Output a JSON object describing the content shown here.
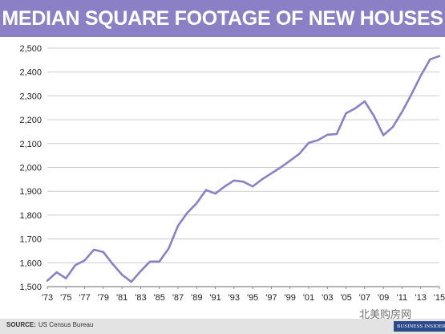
{
  "header": {
    "title": "MEDIAN SQUARE FOOTAGE OF NEW HOUSES"
  },
  "footer": {
    "source_label": "SOURCE:",
    "source_text": "US Census Bureau",
    "brand": "BUSINESS INSIDER",
    "watermark": "北美购房网"
  },
  "colors": {
    "title_bg": "#8b80c6",
    "line": "#8b80c6",
    "grid": "#cccccc"
  },
  "chart_data": {
    "type": "line",
    "title": "MEDIAN SQUARE FOOTAGE OF NEW HOUSES",
    "xlabel": "",
    "ylabel": "",
    "ylim": [
      1500,
      2500
    ],
    "grid": "horizontal",
    "y_ticks": [
      1500,
      1600,
      1700,
      1800,
      1900,
      2000,
      2100,
      2200,
      2300,
      2400,
      2500
    ],
    "y_tick_labels": [
      "1,500",
      "1,600",
      "1,700",
      "1,800",
      "1,900",
      "2,000",
      "2,100",
      "2,200",
      "2,300",
      "2,400",
      "2,500"
    ],
    "x_tick_labels": [
      "'73",
      "'75",
      "'77",
      "'79",
      "'81",
      "'83",
      "'85",
      "'87",
      "'89",
      "'91",
      "'93",
      "'95",
      "'97",
      "'99",
      "'01",
      "'03",
      "'05",
      "'07",
      "'09",
      "'11",
      "'13",
      "'15"
    ],
    "x": [
      1973,
      1974,
      1975,
      1976,
      1977,
      1978,
      1979,
      1980,
      1981,
      1982,
      1983,
      1984,
      1985,
      1986,
      1987,
      1988,
      1989,
      1990,
      1991,
      1992,
      1993,
      1994,
      1995,
      1996,
      1997,
      1998,
      1999,
      2000,
      2001,
      2002,
      2003,
      2004,
      2005,
      2006,
      2007,
      2008,
      2009,
      2010,
      2011,
      2012,
      2013,
      2014,
      2015
    ],
    "series": [
      {
        "values": [
          1525,
          1560,
          1535,
          1590,
          1610,
          1655,
          1645,
          1595,
          1550,
          1520,
          1565,
          1605,
          1605,
          1660,
          1755,
          1810,
          1850,
          1905,
          1890,
          1920,
          1945,
          1940,
          1920,
          1950,
          1975,
          2000,
          2028,
          2057,
          2103,
          2114,
          2137,
          2140,
          2227,
          2248,
          2277,
          2215,
          2135,
          2169,
          2233,
          2306,
          2384,
          2453,
          2467
        ]
      }
    ]
  }
}
